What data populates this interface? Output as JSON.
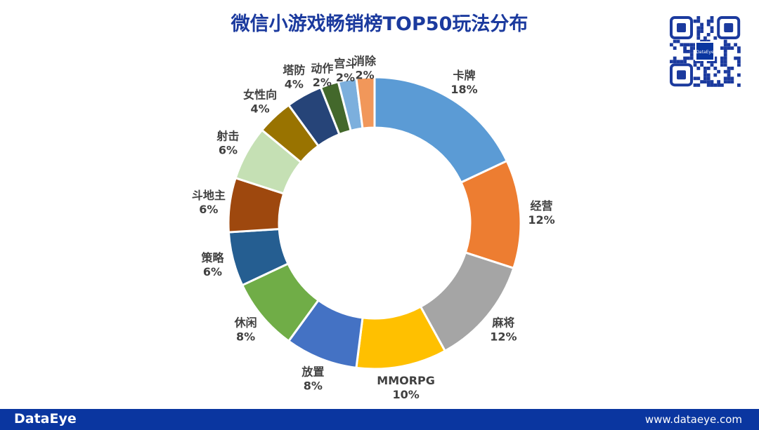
{
  "chart_data": {
    "type": "pie",
    "donut": true,
    "title": "微信小游戏畅销榜TOP50玩法分布",
    "categories": [
      "卡牌",
      "经营",
      "麻将",
      "MMORPG",
      "放置",
      "休闲",
      "策略",
      "斗地主",
      "射击",
      "女性向",
      "塔防",
      "动作",
      "宫斗",
      "消除"
    ],
    "values": [
      18,
      12,
      12,
      10,
      8,
      8,
      6,
      6,
      6,
      4,
      4,
      2,
      2,
      2
    ],
    "unit": "%",
    "colors": [
      "#5B9BD5",
      "#ED7D31",
      "#A5A5A5",
      "#FFC000",
      "#4472C4",
      "#70AD47",
      "#255E91",
      "#9E480E",
      "#C5E0B4",
      "#997300",
      "#264478",
      "#43682B",
      "#7CAFDD",
      "#F1975A"
    ],
    "legend": "none"
  },
  "footer": {
    "brand": "DataEye",
    "website": "www.dataeye.com"
  },
  "qr": {
    "logo_text": "DataEye"
  }
}
